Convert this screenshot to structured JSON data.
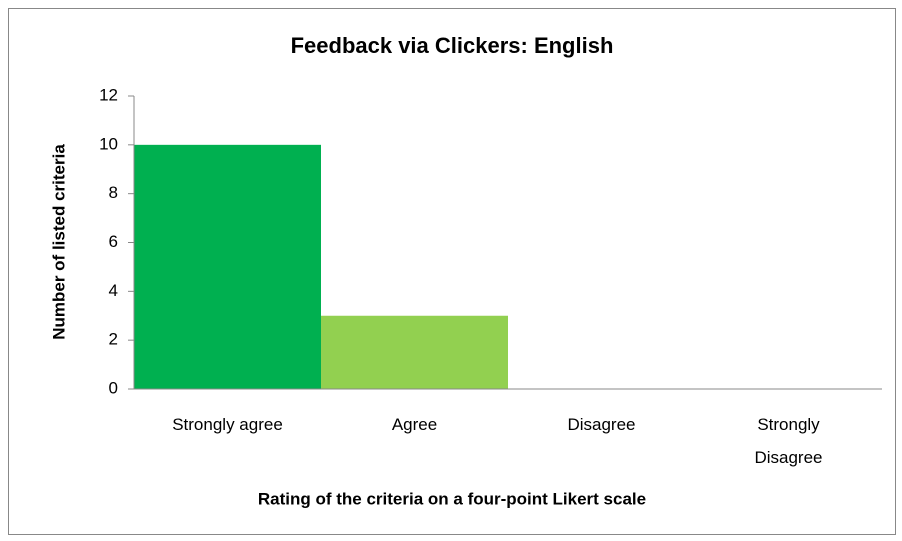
{
  "chart_data": {
    "type": "bar",
    "title": "Feedback via Clickers: English",
    "xlabel": "Rating of the criteria on a four-point Likert scale",
    "ylabel": "Number of listed criteria",
    "categories": [
      "Strongly agree",
      "Agree",
      "Disagree",
      "Strongly Disagree"
    ],
    "values": [
      10,
      3,
      0,
      0
    ],
    "colors": [
      "#00b050",
      "#92d050",
      null,
      null
    ],
    "ylim": [
      0,
      12
    ],
    "yticks": [
      0,
      2,
      4,
      6,
      8,
      10,
      12
    ],
    "grid": false
  }
}
